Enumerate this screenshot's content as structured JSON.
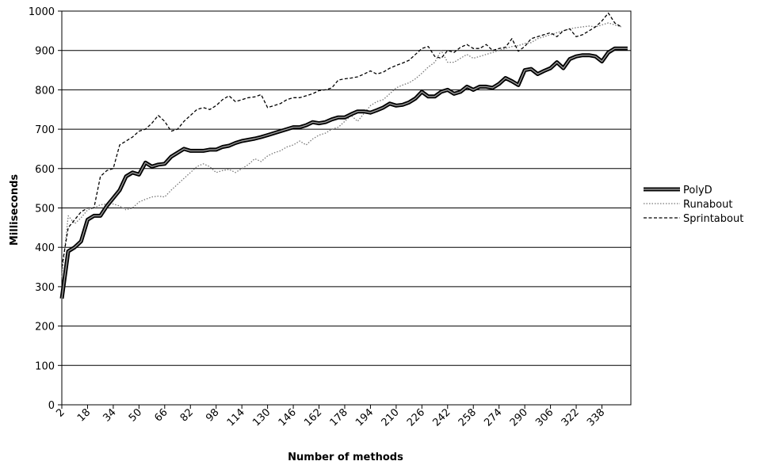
{
  "chart_data": {
    "type": "line",
    "title": "",
    "xlabel": "Number of methods",
    "ylabel": "Milliseconds",
    "xlim": [
      2,
      356
    ],
    "ylim": [
      0,
      1000
    ],
    "y_ticks": [
      0,
      100,
      200,
      300,
      400,
      500,
      600,
      700,
      800,
      900,
      1000
    ],
    "x_ticks": [
      2,
      18,
      34,
      50,
      66,
      82,
      98,
      114,
      130,
      146,
      162,
      178,
      194,
      210,
      226,
      242,
      258,
      274,
      290,
      306,
      322,
      338
    ],
    "grid": "horizontal",
    "legend_position": "right",
    "series": [
      {
        "name": "PolyD",
        "style": "thick-solid",
        "color": "#000000",
        "points": [
          [
            2,
            270
          ],
          [
            6,
            390
          ],
          [
            10,
            400
          ],
          [
            14,
            415
          ],
          [
            18,
            470
          ],
          [
            22,
            480
          ],
          [
            26,
            480
          ],
          [
            30,
            505
          ],
          [
            34,
            525
          ],
          [
            38,
            545
          ],
          [
            42,
            580
          ],
          [
            46,
            590
          ],
          [
            50,
            585
          ],
          [
            54,
            615
          ],
          [
            58,
            605
          ],
          [
            62,
            610
          ],
          [
            66,
            612
          ],
          [
            70,
            630
          ],
          [
            74,
            640
          ],
          [
            78,
            650
          ],
          [
            82,
            645
          ],
          [
            86,
            645
          ],
          [
            90,
            645
          ],
          [
            94,
            648
          ],
          [
            98,
            648
          ],
          [
            102,
            655
          ],
          [
            106,
            658
          ],
          [
            110,
            665
          ],
          [
            114,
            670
          ],
          [
            118,
            673
          ],
          [
            122,
            676
          ],
          [
            126,
            680
          ],
          [
            130,
            685
          ],
          [
            134,
            690
          ],
          [
            138,
            695
          ],
          [
            142,
            700
          ],
          [
            146,
            705
          ],
          [
            150,
            705
          ],
          [
            154,
            710
          ],
          [
            158,
            718
          ],
          [
            162,
            715
          ],
          [
            166,
            718
          ],
          [
            170,
            725
          ],
          [
            174,
            730
          ],
          [
            178,
            730
          ],
          [
            182,
            738
          ],
          [
            186,
            745
          ],
          [
            190,
            745
          ],
          [
            194,
            742
          ],
          [
            198,
            748
          ],
          [
            202,
            755
          ],
          [
            206,
            765
          ],
          [
            210,
            760
          ],
          [
            214,
            762
          ],
          [
            218,
            768
          ],
          [
            222,
            778
          ],
          [
            226,
            795
          ],
          [
            230,
            783
          ],
          [
            234,
            783
          ],
          [
            238,
            795
          ],
          [
            242,
            800
          ],
          [
            246,
            790
          ],
          [
            250,
            795
          ],
          [
            254,
            808
          ],
          [
            258,
            800
          ],
          [
            262,
            808
          ],
          [
            266,
            808
          ],
          [
            270,
            805
          ],
          [
            274,
            815
          ],
          [
            278,
            830
          ],
          [
            282,
            822
          ],
          [
            286,
            812
          ],
          [
            290,
            850
          ],
          [
            294,
            853
          ],
          [
            298,
            840
          ],
          [
            302,
            848
          ],
          [
            306,
            855
          ],
          [
            310,
            870
          ],
          [
            314,
            855
          ],
          [
            318,
            878
          ],
          [
            322,
            885
          ],
          [
            326,
            888
          ],
          [
            330,
            888
          ],
          [
            334,
            885
          ],
          [
            338,
            872
          ],
          [
            342,
            895
          ],
          [
            346,
            905
          ],
          [
            350,
            905
          ],
          [
            354,
            905
          ]
        ]
      },
      {
        "name": "Runabout",
        "style": "dotted",
        "color": "#777777",
        "points": [
          [
            2,
            325
          ],
          [
            6,
            480
          ],
          [
            10,
            460
          ],
          [
            14,
            475
          ],
          [
            18,
            495
          ],
          [
            22,
            500
          ],
          [
            26,
            508
          ],
          [
            30,
            510
          ],
          [
            34,
            510
          ],
          [
            38,
            505
          ],
          [
            42,
            495
          ],
          [
            46,
            500
          ],
          [
            50,
            515
          ],
          [
            54,
            522
          ],
          [
            58,
            528
          ],
          [
            62,
            530
          ],
          [
            66,
            528
          ],
          [
            70,
            545
          ],
          [
            74,
            560
          ],
          [
            78,
            575
          ],
          [
            82,
            590
          ],
          [
            86,
            605
          ],
          [
            90,
            612
          ],
          [
            94,
            605
          ],
          [
            98,
            590
          ],
          [
            102,
            595
          ],
          [
            106,
            598
          ],
          [
            110,
            590
          ],
          [
            114,
            600
          ],
          [
            118,
            610
          ],
          [
            122,
            625
          ],
          [
            126,
            618
          ],
          [
            130,
            632
          ],
          [
            134,
            640
          ],
          [
            138,
            645
          ],
          [
            142,
            655
          ],
          [
            146,
            660
          ],
          [
            150,
            670
          ],
          [
            154,
            660
          ],
          [
            158,
            675
          ],
          [
            162,
            685
          ],
          [
            166,
            690
          ],
          [
            170,
            700
          ],
          [
            174,
            705
          ],
          [
            178,
            720
          ],
          [
            182,
            735
          ],
          [
            186,
            720
          ],
          [
            190,
            740
          ],
          [
            194,
            760
          ],
          [
            198,
            770
          ],
          [
            202,
            775
          ],
          [
            206,
            790
          ],
          [
            210,
            805
          ],
          [
            214,
            812
          ],
          [
            218,
            818
          ],
          [
            222,
            828
          ],
          [
            226,
            842
          ],
          [
            230,
            858
          ],
          [
            234,
            870
          ],
          [
            238,
            900
          ],
          [
            242,
            870
          ],
          [
            246,
            870
          ],
          [
            250,
            880
          ],
          [
            254,
            890
          ],
          [
            258,
            880
          ],
          [
            262,
            885
          ],
          [
            266,
            890
          ],
          [
            270,
            895
          ],
          [
            274,
            900
          ],
          [
            278,
            905
          ],
          [
            282,
            910
          ],
          [
            286,
            912
          ],
          [
            290,
            918
          ],
          [
            294,
            920
          ],
          [
            298,
            930
          ],
          [
            302,
            935
          ],
          [
            306,
            940
          ],
          [
            310,
            945
          ],
          [
            314,
            950
          ],
          [
            318,
            955
          ],
          [
            322,
            958
          ],
          [
            326,
            960
          ],
          [
            330,
            962
          ],
          [
            334,
            960
          ],
          [
            338,
            965
          ],
          [
            342,
            970
          ],
          [
            346,
            965
          ],
          [
            350,
            960
          ]
        ]
      },
      {
        "name": "Sprintabout",
        "style": "dashed",
        "color": "#000000",
        "points": [
          [
            2,
            350
          ],
          [
            6,
            450
          ],
          [
            10,
            470
          ],
          [
            14,
            490
          ],
          [
            18,
            500
          ],
          [
            22,
            500
          ],
          [
            26,
            580
          ],
          [
            30,
            595
          ],
          [
            34,
            600
          ],
          [
            38,
            660
          ],
          [
            42,
            670
          ],
          [
            46,
            680
          ],
          [
            50,
            695
          ],
          [
            54,
            700
          ],
          [
            58,
            715
          ],
          [
            62,
            735
          ],
          [
            66,
            720
          ],
          [
            70,
            695
          ],
          [
            74,
            700
          ],
          [
            78,
            720
          ],
          [
            82,
            735
          ],
          [
            86,
            750
          ],
          [
            90,
            755
          ],
          [
            94,
            750
          ],
          [
            98,
            760
          ],
          [
            102,
            775
          ],
          [
            106,
            785
          ],
          [
            110,
            770
          ],
          [
            114,
            775
          ],
          [
            118,
            780
          ],
          [
            122,
            782
          ],
          [
            126,
            788
          ],
          [
            130,
            755
          ],
          [
            134,
            760
          ],
          [
            138,
            765
          ],
          [
            142,
            775
          ],
          [
            146,
            780
          ],
          [
            150,
            780
          ],
          [
            154,
            785
          ],
          [
            158,
            790
          ],
          [
            162,
            798
          ],
          [
            166,
            800
          ],
          [
            170,
            805
          ],
          [
            174,
            825
          ],
          [
            178,
            828
          ],
          [
            182,
            830
          ],
          [
            186,
            833
          ],
          [
            190,
            840
          ],
          [
            194,
            848
          ],
          [
            198,
            840
          ],
          [
            202,
            845
          ],
          [
            206,
            855
          ],
          [
            210,
            862
          ],
          [
            214,
            868
          ],
          [
            218,
            875
          ],
          [
            222,
            890
          ],
          [
            226,
            905
          ],
          [
            230,
            910
          ],
          [
            234,
            885
          ],
          [
            238,
            880
          ],
          [
            242,
            900
          ],
          [
            246,
            895
          ],
          [
            250,
            908
          ],
          [
            254,
            915
          ],
          [
            258,
            905
          ],
          [
            262,
            905
          ],
          [
            266,
            915
          ],
          [
            270,
            900
          ],
          [
            274,
            905
          ],
          [
            278,
            908
          ],
          [
            282,
            930
          ],
          [
            286,
            898
          ],
          [
            290,
            910
          ],
          [
            294,
            930
          ],
          [
            298,
            935
          ],
          [
            302,
            940
          ],
          [
            306,
            945
          ],
          [
            310,
            935
          ],
          [
            314,
            950
          ],
          [
            318,
            955
          ],
          [
            322,
            935
          ],
          [
            326,
            940
          ],
          [
            330,
            950
          ],
          [
            334,
            960
          ],
          [
            338,
            975
          ],
          [
            342,
            995
          ],
          [
            346,
            970
          ],
          [
            350,
            960
          ]
        ]
      }
    ]
  }
}
